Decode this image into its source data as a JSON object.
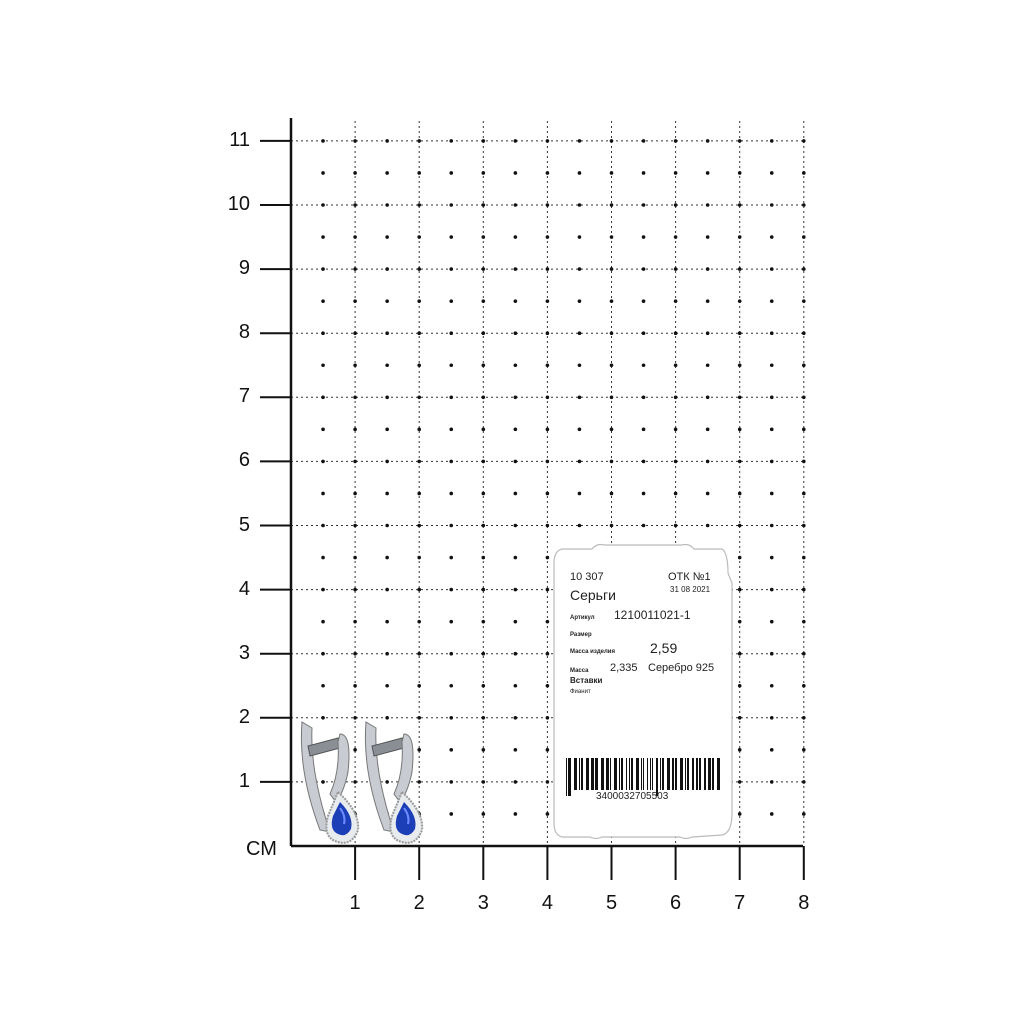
{
  "ruler": {
    "unit_label": "СМ",
    "y_ticks": [
      "1",
      "2",
      "3",
      "4",
      "5",
      "6",
      "7",
      "8",
      "9",
      "10",
      "11"
    ],
    "x_ticks": [
      "1",
      "2",
      "3",
      "4",
      "5",
      "6",
      "7",
      "8"
    ]
  },
  "product": {
    "name": "earrings",
    "stone_color": "#1c3fb8",
    "metal_color": "#c8ccd2"
  },
  "tag": {
    "code": "10 307",
    "otk": "ОТК №1",
    "date": "31 08 2021",
    "title": "Серьги",
    "article_label": "Артикул",
    "article": "1210011021-1",
    "size_label": "Размер",
    "weight_label": "Масса изделия",
    "weight": "2,59",
    "mass_label": "Масса",
    "mass": "2,335",
    "metal": "Серебро 925",
    "inserts_label": "Вставки",
    "insert": "Фианит",
    "barcode": "3400032705503"
  }
}
